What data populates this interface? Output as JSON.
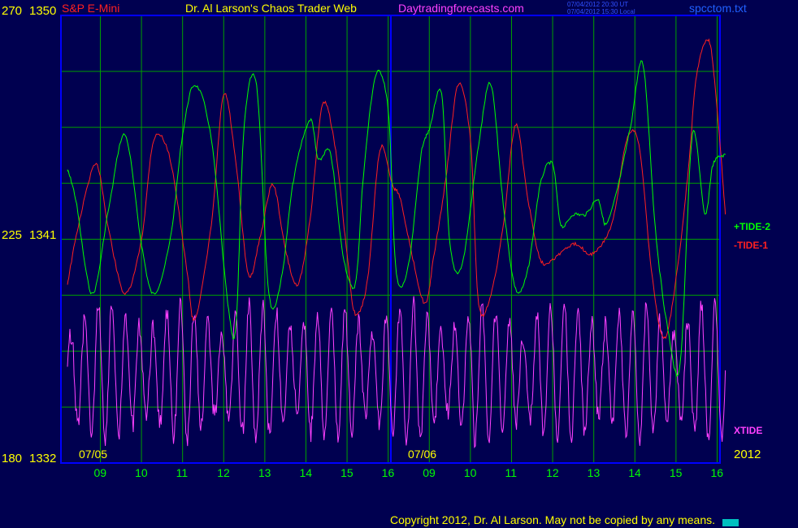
{
  "header": {
    "symbol": "S&P E-Mini",
    "title": "Dr. Al Larson's Chaos Trader Web",
    "site": "Daytradingforecasts.com",
    "timestamp_ut": "07/04/2012 20:30 UT",
    "timestamp_local": "07/04/2012 15:30 Local",
    "file": "spcctom.txt"
  },
  "axis_left": {
    "top": {
      "a": "270",
      "b": "1350"
    },
    "mid": {
      "a": "225",
      "b": "1341"
    },
    "bottom": {
      "a": "180",
      "b": "1332"
    }
  },
  "dates": {
    "d1": "07/05",
    "d2": "07/06"
  },
  "year": "2012",
  "hour_ticks": [
    "09",
    "10",
    "11",
    "12",
    "13",
    "14",
    "15",
    "16",
    "09",
    "10",
    "11",
    "12",
    "13",
    "14",
    "15",
    "16"
  ],
  "legend": {
    "tide2": "+TIDE-2",
    "tide1": "-TIDE-1",
    "xtide": "XTIDE"
  },
  "copyright": "Copyright 2012, Dr. Al Larson.  May not be copied by any means.",
  "colors": {
    "background": "#000050",
    "frame": "#0000ff",
    "grid": "#00a000",
    "tide2": "#00ff00",
    "tide1": "#ff2020",
    "xtide": "#ff40ff",
    "text": "#ffff00"
  },
  "chart_data": {
    "type": "line",
    "x_unit": "hour (session index)",
    "x_domain": [
      0,
      16
    ],
    "ylim_left_scale": [
      180,
      270
    ],
    "ylim_price": [
      1332,
      1350
    ],
    "grid": true,
    "series": [
      {
        "name": "+TIDE-2",
        "x": [
          0,
          0.2,
          0.6,
          1,
          1.4,
          1.8,
          2.1,
          2.5,
          2.8,
          3.1,
          3.5,
          3.9,
          4.1,
          4.3,
          4.6,
          4.9,
          5.2,
          5.5,
          5.9,
          6.1,
          6.4,
          6.7,
          7,
          7.2,
          7.5,
          7.8,
          8,
          8.3,
          8.6,
          8.8,
          9.1,
          9.3,
          9.6,
          10,
          10.3,
          10.6,
          10.9,
          11.2,
          11.5,
          11.8,
          12,
          12.3,
          12.6,
          12.9,
          13.1,
          13.4,
          13.7,
          14,
          14.3,
          14.6,
          14.9,
          15.2,
          15.5,
          15.7,
          16
        ],
        "values": [
          239,
          233,
          214,
          231,
          246,
          224,
          214,
          225,
          246,
          256,
          245,
          212,
          208,
          248,
          256,
          214,
          217,
          237,
          249,
          241,
          242,
          222,
          216,
          238,
          258,
          251,
          218,
          220,
          242,
          247,
          254,
          224,
          220,
          244,
          256,
          232,
          215,
          219,
          236,
          240,
          228,
          230,
          230,
          233,
          228,
          236,
          248,
          260,
          227,
          207,
          200,
          246,
          230,
          240,
          242
        ]
      },
      {
        "name": "-TIDE-1",
        "x": [
          0,
          0.3,
          0.7,
          1,
          1.4,
          1.8,
          2.1,
          2.5,
          2.9,
          3.1,
          3.5,
          3.8,
          4.1,
          4.4,
          4.7,
          5,
          5.3,
          5.6,
          5.9,
          6.2,
          6.5,
          6.8,
          7,
          7.3,
          7.6,
          7.9,
          8.1,
          8.4,
          8.7,
          8.9,
          9.2,
          9.5,
          9.8,
          10,
          10.3,
          10.6,
          10.9,
          11.2,
          11.5,
          11.8,
          12.1,
          12.4,
          12.7,
          13,
          13.3,
          13.6,
          13.9,
          14.2,
          14.5,
          14.8,
          15.1,
          15.3,
          15.6,
          15.8,
          16
        ],
        "values": [
          216,
          229,
          240,
          227,
          214,
          225,
          245,
          241,
          219,
          209,
          228,
          254,
          240,
          218,
          226,
          236,
          223,
          216,
          229,
          252,
          244,
          222,
          210,
          217,
          243,
          236,
          233,
          221,
          212,
          221,
          237,
          256,
          245,
          212,
          214,
          228,
          248,
          233,
          221,
          221,
          223,
          224,
          222,
          224,
          230,
          245,
          244,
          219,
          205,
          217,
          239,
          258,
          265,
          251,
          230
        ]
      },
      {
        "name": "XTIDE",
        "x_domain": [
          0,
          16
        ],
        "ylim": [
          180,
          216
        ],
        "peak_count_approx": 48
      }
    ]
  }
}
